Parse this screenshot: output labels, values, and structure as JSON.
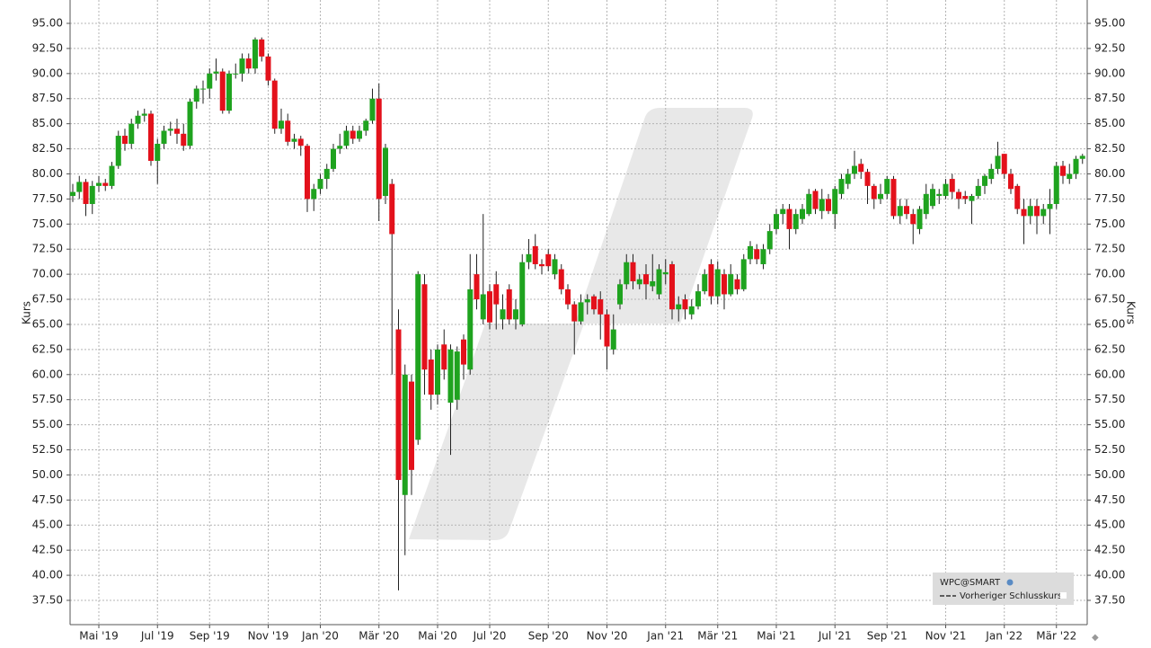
{
  "chart_data": {
    "type": "candlestick",
    "y_axis_label": "Kurs",
    "ylim": [
      35.08,
      97.33
    ],
    "yticks": [
      {
        "value": 37.5,
        "label": "37.50"
      },
      {
        "value": 40,
        "label": "40.00"
      },
      {
        "value": 42.5,
        "label": "42.50"
      },
      {
        "value": 45,
        "label": "45.00"
      },
      {
        "value": 47.5,
        "label": "47.50"
      },
      {
        "value": 50,
        "label": "50.00"
      },
      {
        "value": 52.5,
        "label": "52.50"
      },
      {
        "value": 55,
        "label": "55.00"
      },
      {
        "value": 57.5,
        "label": "57.50"
      },
      {
        "value": 60,
        "label": "60.00"
      },
      {
        "value": 62.5,
        "label": "62.50"
      },
      {
        "value": 65,
        "label": "65.00"
      },
      {
        "value": 67.5,
        "label": "67.50"
      },
      {
        "value": 70,
        "label": "70.00"
      },
      {
        "value": 72.5,
        "label": "72.50"
      },
      {
        "value": 75,
        "label": "75.00"
      },
      {
        "value": 77.5,
        "label": "77.50"
      },
      {
        "value": 80,
        "label": "80.00"
      },
      {
        "value": 82.5,
        "label": "82.50"
      },
      {
        "value": 85,
        "label": "85.00"
      },
      {
        "value": 87.5,
        "label": "87.50"
      },
      {
        "value": 90,
        "label": "90.00"
      },
      {
        "value": 92.5,
        "label": "92.50"
      },
      {
        "value": 95,
        "label": "95.00"
      }
    ],
    "grid": true,
    "up_color": "#1fa31f",
    "down_color": "#e3111b",
    "reference_line_name": "Vorheriger Schlusskurs",
    "categories": [
      null,
      null,
      null,
      null,
      "Mai '19",
      null,
      null,
      null,
      null,
      null,
      null,
      null,
      null,
      "Jul '19",
      null,
      null,
      null,
      null,
      null,
      null,
      null,
      "Sep '19",
      null,
      null,
      null,
      null,
      null,
      null,
      null,
      null,
      "Nov '19",
      null,
      null,
      null,
      null,
      null,
      null,
      null,
      "Jan '20",
      null,
      null,
      null,
      null,
      null,
      null,
      null,
      null,
      "Mär '20",
      null,
      null,
      null,
      null,
      null,
      null,
      null,
      null,
      "Mai '20",
      null,
      null,
      null,
      null,
      null,
      null,
      null,
      "Jul '20",
      null,
      null,
      null,
      null,
      null,
      null,
      null,
      null,
      "Sep '20",
      null,
      null,
      null,
      null,
      null,
      null,
      null,
      null,
      "Nov '20",
      null,
      null,
      null,
      null,
      null,
      null,
      null,
      null,
      "Jan '21",
      null,
      null,
      null,
      null,
      null,
      null,
      null,
      "Mär '21",
      null,
      null,
      null,
      null,
      null,
      null,
      null,
      null,
      "Mai '21",
      null,
      null,
      null,
      null,
      null,
      null,
      null,
      null,
      "Jul '21",
      null,
      null,
      null,
      null,
      null,
      null,
      null,
      "Sep '21",
      null,
      null,
      null,
      null,
      null,
      null,
      null,
      null,
      "Nov '21",
      null,
      null,
      null,
      null,
      null,
      null,
      null,
      null,
      "Jan '22",
      null,
      null,
      null,
      null,
      null,
      null,
      null,
      "Mär '22",
      null,
      null,
      null,
      null
    ],
    "series": [
      {
        "name": "WPC@SMART",
        "open": [
          77.8,
          78.2,
          79.2,
          77.0,
          78.8,
          79.1,
          78.8,
          80.8,
          83.8,
          83.0,
          85.0,
          85.8,
          86.0,
          81.3,
          83.0,
          84.3,
          84.5,
          84.0,
          82.8,
          87.2,
          88.5,
          88.5,
          90.0,
          90.2,
          86.3,
          90.0,
          90.0,
          91.5,
          90.5,
          93.4,
          91.7,
          89.3,
          84.5,
          85.3,
          83.2,
          83.5,
          82.8,
          77.5,
          78.5,
          79.5,
          80.5,
          82.5,
          82.8,
          84.3,
          83.5,
          84.3,
          85.3,
          87.5,
          77.8,
          79.0,
          64.5,
          48.0,
          59.3,
          53.5,
          69.0,
          61.5,
          58.0,
          63.0,
          57.2,
          57.5,
          63.5,
          60.5,
          70.0,
          65.5,
          68.3,
          69.0,
          65.5,
          68.5,
          65.5,
          65.0,
          71.2,
          72.8,
          71.0,
          72.0,
          70.0,
          70.5,
          68.5,
          67.0,
          65.3,
          67.2,
          67.8,
          67.5,
          66.0,
          62.5,
          67.0,
          69.0,
          71.2,
          69.0,
          70.0,
          68.8,
          68.0,
          70.0,
          71.0,
          66.5,
          67.5,
          66.0,
          66.8,
          68.3,
          71.0,
          67.8,
          70.0,
          68.0,
          69.5,
          68.5,
          71.5,
          72.5,
          71.0,
          72.5,
          74.5,
          76.0,
          76.5,
          74.5,
          75.5,
          76.0,
          78.3,
          76.3,
          77.5,
          76.0,
          78.0,
          79.0,
          80.0,
          81.0,
          80.2,
          78.8,
          77.5,
          78.0,
          79.5,
          75.8,
          76.8,
          76.0,
          74.5,
          76.0,
          76.8,
          77.8,
          77.8,
          79.5,
          78.2,
          77.8,
          77.3,
          77.8,
          78.8,
          79.5,
          80.5,
          82.0,
          80.0,
          78.8,
          76.5,
          75.8,
          76.8,
          75.8,
          76.5,
          77.0,
          80.8,
          79.5,
          80.0,
          81.5
        ],
        "high": [
          79.0,
          79.8,
          79.5,
          79.3,
          79.8,
          79.5,
          81.2,
          84.3,
          84.5,
          85.5,
          86.3,
          86.5,
          86.3,
          83.5,
          84.8,
          85.2,
          85.5,
          85.0,
          87.5,
          88.8,
          89.3,
          90.5,
          91.5,
          90.5,
          90.3,
          91.0,
          92.0,
          92.0,
          93.6,
          93.6,
          92.0,
          89.5,
          86.5,
          86.0,
          84.0,
          83.8,
          83.0,
          79.0,
          80.0,
          81.0,
          83.0,
          84.0,
          84.8,
          84.8,
          84.8,
          85.5,
          88.5,
          89.0,
          83.0,
          79.5,
          66.5,
          61.0,
          60.0,
          70.3,
          70.0,
          62.5,
          63.0,
          64.5,
          63.0,
          62.8,
          64.0,
          72.0,
          72.0,
          76.0,
          69.0,
          70.3,
          68.0,
          69.0,
          67.5,
          72.0,
          73.5,
          74.0,
          71.5,
          72.5,
          72.0,
          71.0,
          69.0,
          67.3,
          68.0,
          68.0,
          68.0,
          68.3,
          66.5,
          66.0,
          69.5,
          72.0,
          72.0,
          70.0,
          71.0,
          72.0,
          71.0,
          71.5,
          71.3,
          67.8,
          68.0,
          67.5,
          69.0,
          70.5,
          71.5,
          71.3,
          70.5,
          71.0,
          70.0,
          72.0,
          73.3,
          73.0,
          73.0,
          75.0,
          76.5,
          77.0,
          77.0,
          76.5,
          77.0,
          78.5,
          78.5,
          78.5,
          78.0,
          78.8,
          80.0,
          80.5,
          82.3,
          81.5,
          80.5,
          79.0,
          79.0,
          79.8,
          79.8,
          77.5,
          77.5,
          76.5,
          76.8,
          79.0,
          79.0,
          78.5,
          79.5,
          80.0,
          78.5,
          78.3,
          78.0,
          79.5,
          80.0,
          81.0,
          83.2,
          82.0,
          80.5,
          79.0,
          77.5,
          77.5,
          77.5,
          77.0,
          78.5,
          81.2,
          81.3,
          81.0,
          81.8,
          82.0
        ],
        "low": [
          77.2,
          77.5,
          75.8,
          76.0,
          78.2,
          78.3,
          78.5,
          80.5,
          82.3,
          82.5,
          84.5,
          85.2,
          80.8,
          79.0,
          82.5,
          83.8,
          83.0,
          82.3,
          82.5,
          86.5,
          87.0,
          87.5,
          89.3,
          86.0,
          86.0,
          89.5,
          89.2,
          90.0,
          90.0,
          91.2,
          88.8,
          84.0,
          84.0,
          82.8,
          82.5,
          81.8,
          76.2,
          76.3,
          78.0,
          78.5,
          80.2,
          82.0,
          82.5,
          83.0,
          83.2,
          83.8,
          85.0,
          75.3,
          77.0,
          60.0,
          38.5,
          42.0,
          48.0,
          53.0,
          58.0,
          56.5,
          57.0,
          59.5,
          52.0,
          56.5,
          59.5,
          60.0,
          66.5,
          65.0,
          64.5,
          64.5,
          64.5,
          65.0,
          64.5,
          64.8,
          70.5,
          70.5,
          70.0,
          70.3,
          69.5,
          68.0,
          66.5,
          62.0,
          65.0,
          66.0,
          66.0,
          63.5,
          60.5,
          62.0,
          66.5,
          68.5,
          68.5,
          68.5,
          67.5,
          68.3,
          67.5,
          69.0,
          65.5,
          65.3,
          65.5,
          65.5,
          66.5,
          68.0,
          67.0,
          67.0,
          66.5,
          67.8,
          68.0,
          68.3,
          71.0,
          71.0,
          70.5,
          72.0,
          74.0,
          75.0,
          72.5,
          74.0,
          75.0,
          75.8,
          76.0,
          75.5,
          76.0,
          74.5,
          77.5,
          78.5,
          79.5,
          79.5,
          77.0,
          76.5,
          77.0,
          77.5,
          75.5,
          75.0,
          75.5,
          73.0,
          74.0,
          75.5,
          76.5,
          77.0,
          77.5,
          77.5,
          76.5,
          77.0,
          75.0,
          77.5,
          78.0,
          79.0,
          80.0,
          79.5,
          78.0,
          76.0,
          73.0,
          75.0,
          74.0,
          75.0,
          74.0,
          76.5,
          79.0,
          79.0,
          79.5,
          81.0
        ],
        "close": [
          78.2,
          79.2,
          77.0,
          78.8,
          79.1,
          78.8,
          80.8,
          83.8,
          83.0,
          85.0,
          85.8,
          86.0,
          81.3,
          83.0,
          84.3,
          84.5,
          84.0,
          82.8,
          87.2,
          88.5,
          88.5,
          90.0,
          90.2,
          86.3,
          90.0,
          90.0,
          91.5,
          90.5,
          93.4,
          91.7,
          89.3,
          84.5,
          85.3,
          83.2,
          83.5,
          82.8,
          77.5,
          78.5,
          79.5,
          80.5,
          82.5,
          82.8,
          84.3,
          83.5,
          84.3,
          85.3,
          87.5,
          77.5,
          82.6,
          74.0,
          49.5,
          60.0,
          50.5,
          70.0,
          60.5,
          58.0,
          62.5,
          60.5,
          62.5,
          62.3,
          61.0,
          68.5,
          67.5,
          68.0,
          65.2,
          67.0,
          66.5,
          65.5,
          66.5,
          71.2,
          72.0,
          71.0,
          70.8,
          70.8,
          71.5,
          68.5,
          67.0,
          65.3,
          67.2,
          67.5,
          66.5,
          66.0,
          62.8,
          64.5,
          69.0,
          71.2,
          69.3,
          69.5,
          69.0,
          69.3,
          70.5,
          70.2,
          66.5,
          67.0,
          66.5,
          66.8,
          68.3,
          70.0,
          67.8,
          70.5,
          68.0,
          70.0,
          68.5,
          71.5,
          72.8,
          71.5,
          72.5,
          74.3,
          76.0,
          76.5,
          74.5,
          76.0,
          76.5,
          78.0,
          76.5,
          77.5,
          76.3,
          78.5,
          79.5,
          80.0,
          80.8,
          80.2,
          78.8,
          77.5,
          78.0,
          79.5,
          75.8,
          76.8,
          76.0,
          75.0,
          76.5,
          78.0,
          78.5,
          78.0,
          79.0,
          78.2,
          77.5,
          77.5,
          77.8,
          78.8,
          79.8,
          80.5,
          81.8,
          80.0,
          78.5,
          76.5,
          75.8,
          76.8,
          75.8,
          76.5,
          77.0,
          80.8,
          79.8,
          80.0,
          81.5,
          81.8
        ]
      }
    ]
  }
}
